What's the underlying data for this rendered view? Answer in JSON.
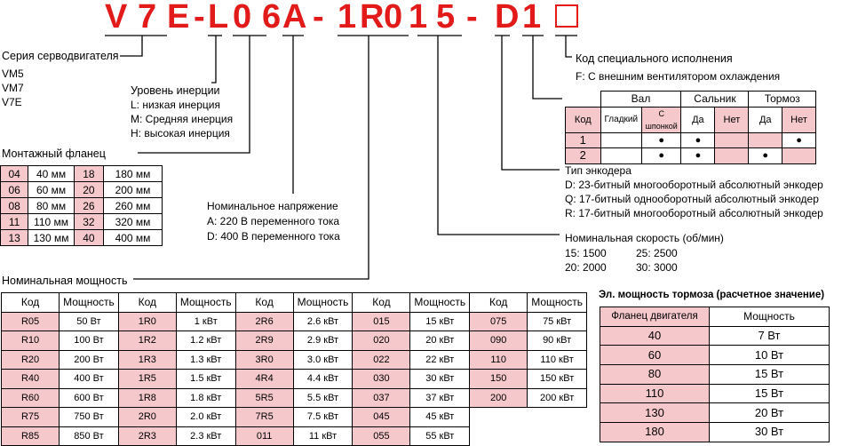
{
  "model_code": {
    "chars": [
      "V",
      "7",
      "E",
      "-",
      "L",
      "0",
      "6",
      "A",
      "-",
      "1",
      "R",
      "0",
      "1",
      "5",
      "-",
      "D",
      "1"
    ],
    "box_label": ""
  },
  "series": {
    "title": "Серия серводвигателя",
    "items": [
      "VM5",
      "VM7",
      "V7E"
    ]
  },
  "inertia": {
    "title": "Уровень инерции",
    "items": [
      "L: низкая инерция",
      "M: Средняя инерция",
      "H: высокая инерция"
    ]
  },
  "flange": {
    "title": "Монтажный фланец",
    "rows": [
      [
        "04",
        "40 мм",
        "18",
        "180 мм"
      ],
      [
        "06",
        "60 мм",
        "20",
        "200 мм"
      ],
      [
        "08",
        "80 мм",
        "26",
        "260 мм"
      ],
      [
        "11",
        "110 мм",
        "32",
        "320 мм"
      ],
      [
        "13",
        "130 мм",
        "40",
        "400 мм"
      ]
    ]
  },
  "voltage": {
    "title": "Номинальное напряжение",
    "items": [
      "A: 220 В переменного тока",
      "D: 400 В переменного тока"
    ]
  },
  "special": {
    "title": "Код специального исполнения",
    "items": [
      "F: С внешним вентилятором охлаждения"
    ]
  },
  "shaft": {
    "groups": [
      "Вал",
      "Сальник",
      "Тормоз"
    ],
    "headers": [
      "Код",
      "Гладкий",
      "С шпонкой",
      "Да",
      "Нет",
      "Да",
      "Нет"
    ],
    "rows": [
      [
        "1",
        "",
        "●",
        "●",
        "",
        "",
        "●"
      ],
      [
        "2",
        "",
        "●",
        "●",
        "",
        "●",
        ""
      ]
    ]
  },
  "encoder": {
    "title": "Тип энкодера",
    "items": [
      "D: 23-битный многооборотный абсолютный энкодер",
      "Q: 17-битный однооборотный абсолютный энкодер",
      "R: 17-битный многооборотный абсолютный энкодер"
    ]
  },
  "speed": {
    "title": "Номинальная скорость (об/мин)",
    "items": [
      "15: 1500",
      "25: 2500",
      "20: 2000",
      "30: 3000"
    ]
  },
  "power": {
    "title": "Номинальная мощность",
    "headers": [
      "Код",
      "Мощность"
    ],
    "columns": [
      [
        [
          "R05",
          "50 Вт"
        ],
        [
          "R10",
          "100 Вт"
        ],
        [
          "R20",
          "200 Вт"
        ],
        [
          "R40",
          "400 Вт"
        ],
        [
          "R60",
          "600 Вт"
        ],
        [
          "R75",
          "750 Вт"
        ],
        [
          "R85",
          "850 Вт"
        ]
      ],
      [
        [
          "1R0",
          "1 кВт"
        ],
        [
          "1R2",
          "1.2 кВт"
        ],
        [
          "1R3",
          "1.3 кВт"
        ],
        [
          "1R5",
          "1.5 кВт"
        ],
        [
          "1R8",
          "1.8 кВт"
        ],
        [
          "2R0",
          "2.0 кВт"
        ],
        [
          "2R3",
          "2.3 кВт"
        ]
      ],
      [
        [
          "2R6",
          "2.6 кВт"
        ],
        [
          "2R9",
          "2.9 кВт"
        ],
        [
          "3R0",
          "3.0 кВт"
        ],
        [
          "4R4",
          "4.4 кВт"
        ],
        [
          "5R5",
          "5.5 кВт"
        ],
        [
          "7R5",
          "7.5 кВт"
        ],
        [
          "011",
          "11 кВт"
        ]
      ],
      [
        [
          "015",
          "15 кВт"
        ],
        [
          "020",
          "20 кВт"
        ],
        [
          "022",
          "22 кВт"
        ],
        [
          "030",
          "30 кВт"
        ],
        [
          "037",
          "37 кВт"
        ],
        [
          "045",
          "45 кВт"
        ],
        [
          "055",
          "55 кВт"
        ]
      ],
      [
        [
          "075",
          "75 кВт"
        ],
        [
          "090",
          "90 кВт"
        ],
        [
          "110",
          "110 кВт"
        ],
        [
          "150",
          "150 кВт"
        ],
        [
          "200",
          "200 кВт"
        ]
      ]
    ]
  },
  "brake": {
    "title": "Эл. мощность тормоза (расчетное значение)",
    "headers": [
      "Фланец двигателя",
      "Мощность"
    ],
    "rows": [
      [
        "40",
        "7 Вт"
      ],
      [
        "60",
        "10 Вт"
      ],
      [
        "80",
        "15 Вт"
      ],
      [
        "110",
        "15 Вт"
      ],
      [
        "130",
        "20 Вт"
      ],
      [
        "180",
        "30 Вт"
      ]
    ]
  },
  "colors": {
    "code_red": "#e21a1a",
    "cell_pink": "#f5c9cb"
  }
}
